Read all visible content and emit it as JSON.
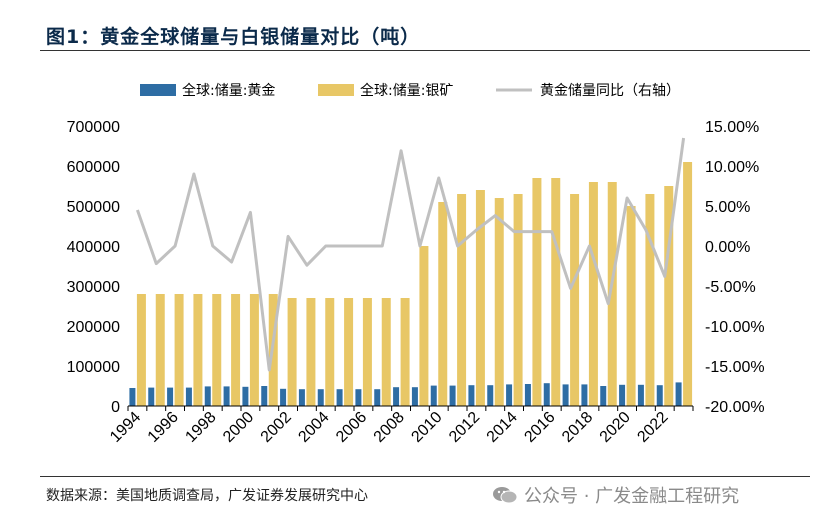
{
  "header": {
    "title": "图1：黄金全球储量与白银储量对比（吨）"
  },
  "footer": {
    "source": "数据来源：美国地质调查局，广发证券发展研究中心",
    "watermark": "公众号 · 广发金融工程研究"
  },
  "chart_data": {
    "type": "bar",
    "title": "图1：黄金全球储量与白银储量对比（吨）",
    "categories": [
      "1994",
      "1995",
      "1996",
      "1997",
      "1998",
      "1999",
      "2000",
      "2001",
      "2002",
      "2003",
      "2004",
      "2005",
      "2006",
      "2007",
      "2008",
      "2009",
      "2010",
      "2011",
      "2012",
      "2013",
      "2014",
      "2015",
      "2016",
      "2017",
      "2018",
      "2019",
      "2020",
      "2021",
      "2022",
      "2023"
    ],
    "x_tick_labels": [
      "1994",
      "1996",
      "1998",
      "2000",
      "2002",
      "2004",
      "2006",
      "2008",
      "2010",
      "2012",
      "2014",
      "2016",
      "2018",
      "2020",
      "2022"
    ],
    "y_left": {
      "lim": [
        0,
        700000
      ],
      "ticks": [
        "0",
        "100000",
        "200000",
        "300000",
        "400000",
        "500000",
        "600000",
        "700000"
      ]
    },
    "y_right": {
      "lim": [
        -20,
        15
      ],
      "ticks": [
        "-20.00%",
        "-15.00%",
        "-10.00%",
        "-5.00%",
        "0.00%",
        "5.00%",
        "10.00%",
        "15.00%"
      ]
    },
    "grid": false,
    "legend_position": "top",
    "series": [
      {
        "name": "全球:储量:黄金",
        "type": "bar",
        "axis": "left",
        "color": "#2e6da4",
        "values": [
          45000,
          46000,
          46000,
          46000,
          49000,
          49000,
          48000,
          50000,
          43000,
          42000,
          42000,
          42000,
          42000,
          42000,
          47000,
          47000,
          51000,
          51000,
          52000,
          52000,
          54000,
          55000,
          57000,
          54000,
          54000,
          50000,
          53000,
          53000,
          52000,
          59000
        ]
      },
      {
        "name": "全球:储量:银矿",
        "type": "bar",
        "axis": "left",
        "color": "#e8c766",
        "values": [
          280000,
          280000,
          280000,
          280000,
          280000,
          280000,
          280000,
          280000,
          270000,
          270000,
          270000,
          270000,
          270000,
          270000,
          270000,
          400000,
          510000,
          530000,
          540000,
          520000,
          530000,
          570000,
          570000,
          530000,
          560000,
          560000,
          500000,
          530000,
          550000,
          610000
        ]
      },
      {
        "name": "黄金储量同比（右轴）",
        "type": "line",
        "axis": "right",
        "color": "#c0c0c0",
        "values": [
          4.5,
          -2.2,
          0,
          9,
          0,
          -2,
          4.2,
          -15.5,
          1.2,
          -2.4,
          0,
          0,
          0,
          0,
          11.9,
          0,
          8.5,
          0,
          2,
          3.8,
          1.8,
          1.8,
          1.8,
          -5.3,
          0,
          -7.2,
          6,
          2,
          -3.8,
          13.5
        ]
      }
    ]
  }
}
